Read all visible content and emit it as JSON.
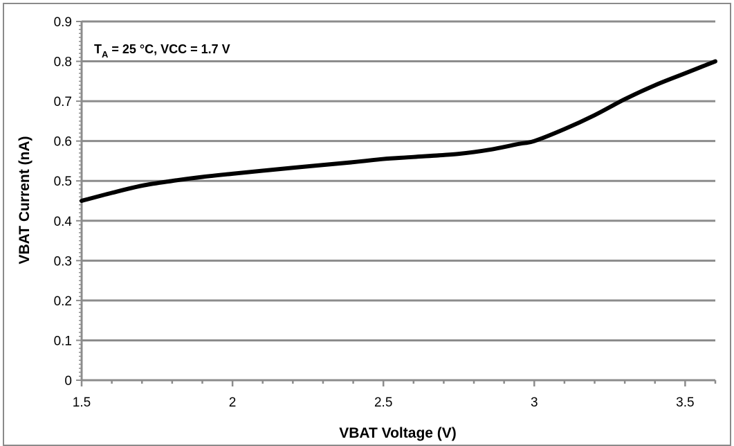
{
  "chart_data": {
    "type": "line",
    "xlabel": "VBAT Voltage (V)",
    "ylabel": "VBAT Current (nA)",
    "xlim": [
      1.5,
      3.6
    ],
    "ylim": [
      0,
      0.9
    ],
    "x_ticks": [
      1.5,
      2,
      2.5,
      3,
      3.5
    ],
    "x_tick_labels": [
      "1.5",
      "2",
      "2.5",
      "3",
      "3.5"
    ],
    "y_ticks": [
      0,
      0.1,
      0.2,
      0.3,
      0.4,
      0.5,
      0.6,
      0.7,
      0.8,
      0.9
    ],
    "y_tick_labels": [
      "0",
      "0.1",
      "0.2",
      "0.3",
      "0.4",
      "0.5",
      "0.6",
      "0.7",
      "0.8",
      "0.9"
    ],
    "grid": true,
    "annotation": {
      "prefix": "T",
      "subscript": "A",
      "suffix": " = 25 °C, VCC = 1.7 V"
    },
    "series": [
      {
        "color": "#000000",
        "x": [
          1.5,
          1.6,
          1.7,
          1.8,
          1.9,
          2.0,
          2.2,
          2.4,
          2.5,
          2.6,
          2.75,
          2.85,
          2.95,
          3.0,
          3.1,
          3.2,
          3.3,
          3.4,
          3.5,
          3.6
        ],
        "y": [
          0.45,
          0.47,
          0.488,
          0.5,
          0.51,
          0.518,
          0.533,
          0.547,
          0.555,
          0.56,
          0.568,
          0.578,
          0.593,
          0.6,
          0.63,
          0.665,
          0.705,
          0.74,
          0.77,
          0.8
        ]
      }
    ]
  }
}
